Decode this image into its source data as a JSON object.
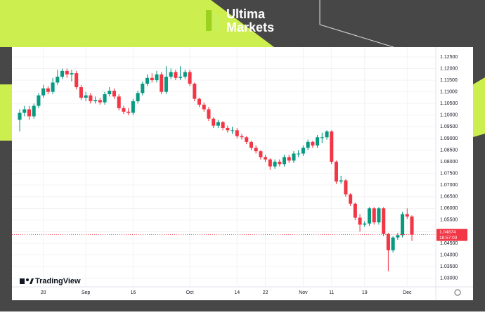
{
  "header": {
    "brand_line1": "Ultima",
    "brand_line2": "Markets"
  },
  "chart_data": {
    "type": "candlestick",
    "watermark": "TradingView",
    "categories": [
      null,
      null,
      null,
      null,
      null,
      "20",
      null,
      null,
      null,
      null,
      null,
      null,
      null,
      null,
      "Sep",
      null,
      null,
      null,
      null,
      null,
      null,
      null,
      null,
      null,
      "16",
      null,
      null,
      null,
      null,
      null,
      null,
      null,
      null,
      null,
      null,
      null,
      "Oct",
      null,
      null,
      null,
      null,
      null,
      null,
      null,
      null,
      null,
      "14",
      null,
      null,
      null,
      null,
      null,
      "22",
      null,
      null,
      null,
      null,
      null,
      null,
      null,
      "Nov",
      null,
      null,
      null,
      null,
      null,
      "11",
      null,
      null,
      null,
      null,
      null,
      null,
      "19",
      null,
      null,
      null,
      null,
      null,
      null,
      null,
      null,
      "Dec",
      null
    ],
    "open": [
      1.098,
      1.101,
      1.1025,
      1.0995,
      1.104,
      1.1085,
      1.1115,
      1.11,
      1.114,
      1.1165,
      1.119,
      1.1175,
      1.118,
      1.112,
      1.1075,
      1.1085,
      1.106,
      1.1065,
      1.1055,
      1.109,
      1.1105,
      1.108,
      1.103,
      1.1015,
      1.101,
      1.106,
      1.1095,
      1.1135,
      1.116,
      1.115,
      1.1175,
      1.11,
      1.1165,
      1.1185,
      1.116,
      1.1165,
      1.1185,
      1.1135,
      1.107,
      1.1045,
      1.1025,
      1.0985,
      1.0955,
      1.097,
      1.0945,
      1.0935,
      1.0935,
      1.091,
      1.0905,
      1.0885,
      1.086,
      1.0845,
      1.082,
      1.081,
      1.078,
      1.08,
      1.079,
      1.082,
      1.0805,
      1.0835,
      1.0835,
      1.086,
      1.0885,
      1.087,
      1.0905,
      1.0905,
      1.093,
      1.08,
      1.0715,
      1.072,
      1.066,
      1.062,
      1.056,
      1.053,
      1.0535,
      1.06,
      1.054,
      1.06,
      1.049,
      1.042,
      1.0475,
      1.0485,
      1.0575,
      1.0565
    ],
    "high": [
      1.1025,
      1.104,
      1.104,
      1.105,
      1.1095,
      1.113,
      1.1125,
      1.116,
      1.1195,
      1.12,
      1.12,
      1.1195,
      1.119,
      1.113,
      1.11,
      1.1095,
      1.108,
      1.1075,
      1.11,
      1.112,
      1.1115,
      1.109,
      1.104,
      1.103,
      1.107,
      1.1105,
      1.1145,
      1.1175,
      1.118,
      1.119,
      1.1185,
      1.121,
      1.12,
      1.1195,
      1.121,
      1.1195,
      1.1195,
      1.114,
      1.1075,
      1.1055,
      1.1035,
      1.099,
      1.098,
      1.0975,
      1.0955,
      1.095,
      1.0945,
      1.092,
      1.091,
      1.089,
      1.087,
      1.085,
      1.083,
      1.0815,
      1.081,
      1.081,
      1.083,
      1.083,
      1.0845,
      1.085,
      1.087,
      1.0895,
      1.089,
      1.0915,
      1.0925,
      1.0935,
      1.0935,
      1.0805,
      1.074,
      1.0725,
      1.0665,
      1.0625,
      1.0575,
      1.0545,
      1.0605,
      1.0605,
      1.0605,
      1.0605,
      1.0495,
      1.048,
      1.0495,
      1.0585,
      1.06,
      1.057
    ],
    "low": [
      1.093,
      1.0995,
      1.098,
      1.0985,
      1.103,
      1.1075,
      1.109,
      1.109,
      1.113,
      1.1155,
      1.116,
      1.1145,
      1.111,
      1.1065,
      1.106,
      1.105,
      1.105,
      1.1045,
      1.1045,
      1.108,
      1.107,
      1.102,
      1.1005,
      1.1,
      1.1,
      1.105,
      1.1085,
      1.1125,
      1.114,
      1.114,
      1.109,
      1.109,
      1.1155,
      1.115,
      1.115,
      1.1155,
      1.1125,
      1.106,
      1.1035,
      1.1015,
      1.0975,
      1.0945,
      1.0945,
      1.0935,
      1.0925,
      1.092,
      1.09,
      1.0895,
      1.0875,
      1.085,
      1.0835,
      1.081,
      1.08,
      1.0765,
      1.077,
      1.078,
      1.078,
      1.0795,
      1.0795,
      1.082,
      1.0825,
      1.085,
      1.086,
      1.086,
      1.088,
      1.0895,
      1.079,
      1.0705,
      1.0705,
      1.065,
      1.061,
      1.055,
      1.05,
      1.052,
      1.0525,
      1.053,
      1.053,
      1.048,
      1.033,
      1.041,
      1.0465,
      1.0475,
      1.0555,
      1.046
    ],
    "close": [
      1.101,
      1.1025,
      1.0995,
      1.104,
      1.1085,
      1.1115,
      1.11,
      1.114,
      1.1165,
      1.119,
      1.1175,
      1.118,
      1.112,
      1.1075,
      1.1085,
      1.106,
      1.1065,
      1.1055,
      1.109,
      1.1105,
      1.108,
      1.103,
      1.1015,
      1.101,
      1.106,
      1.1095,
      1.1135,
      1.116,
      1.115,
      1.1175,
      1.11,
      1.1165,
      1.1185,
      1.116,
      1.1165,
      1.1185,
      1.1135,
      1.107,
      1.1045,
      1.1025,
      1.0985,
      1.0955,
      1.097,
      1.0945,
      1.0935,
      1.0935,
      1.091,
      1.0905,
      1.0885,
      1.086,
      1.0845,
      1.082,
      1.081,
      1.078,
      1.08,
      1.079,
      1.082,
      1.0805,
      1.0835,
      1.0835,
      1.086,
      1.0885,
      1.087,
      1.0905,
      1.0905,
      1.093,
      1.08,
      1.0715,
      1.072,
      1.066,
      1.062,
      1.056,
      1.053,
      1.0535,
      1.06,
      1.054,
      1.06,
      1.049,
      1.042,
      1.0475,
      1.0485,
      1.0575,
      1.0565,
      1.04874
    ],
    "ylim": [
      1.0272,
      1.1277
    ],
    "yticks": [
      {
        "value": 1.125,
        "label": "1.12500"
      },
      {
        "value": 1.12,
        "label": "1.12000"
      },
      {
        "value": 1.115,
        "label": "1.11500"
      },
      {
        "value": 1.11,
        "label": "1.11000"
      },
      {
        "value": 1.105,
        "label": "1.10500"
      },
      {
        "value": 1.1,
        "label": "1.10000"
      },
      {
        "value": 1.095,
        "label": "1.09500"
      },
      {
        "value": 1.09,
        "label": "1.09000"
      },
      {
        "value": 1.085,
        "label": "1.08500"
      },
      {
        "value": 1.08,
        "label": "1.08000"
      },
      {
        "value": 1.075,
        "label": "1.07500"
      },
      {
        "value": 1.07,
        "label": "1.07000"
      },
      {
        "value": 1.065,
        "label": "1.06500"
      },
      {
        "value": 1.06,
        "label": "1.06000"
      },
      {
        "value": 1.055,
        "label": "1.05500"
      },
      {
        "value": 1.05,
        "label": "1.05000"
      },
      {
        "value": 1.045,
        "label": "1.04500"
      },
      {
        "value": 1.04,
        "label": "1.04000"
      },
      {
        "value": 1.035,
        "label": "1.03500"
      },
      {
        "value": 1.03,
        "label": "1.03000"
      }
    ],
    "grid": true,
    "up_color": "#089981",
    "down_color": "#f23645",
    "last_price": 1.04874,
    "countdown": "18:57:03"
  }
}
